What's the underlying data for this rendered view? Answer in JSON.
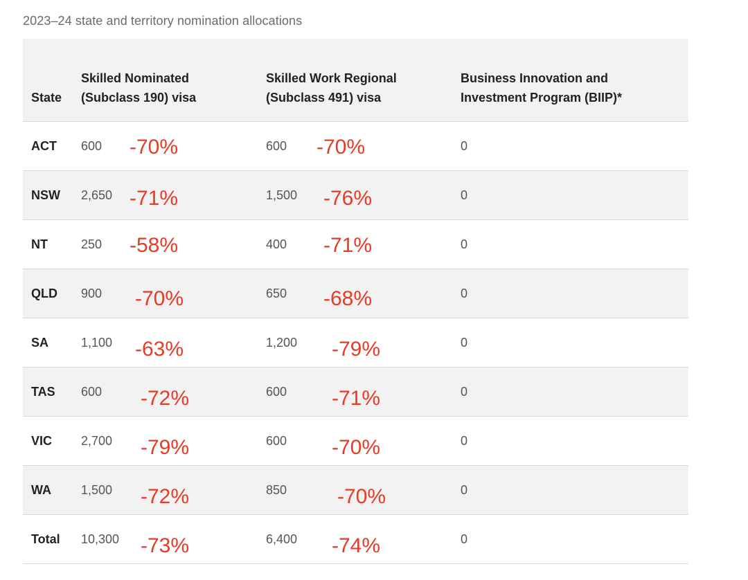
{
  "caption": "2023–24 state and territory nomination allocations",
  "headers": {
    "state": "State",
    "subclass190_line1": "Skilled Nominated",
    "subclass190_line2": "(Subclass 190) visa",
    "subclass491_line1": "Skilled Work Regional",
    "subclass491_line2": "(Subclass 491) visa",
    "biip_line1": "Business Innovation and",
    "biip_line2": "Investment Program (BIIP)*"
  },
  "rows": [
    {
      "state": "ACT",
      "s190": "600",
      "s190_change": "-70%",
      "s491": "600",
      "s491_change": "-70%",
      "biip": "0"
    },
    {
      "state": "NSW",
      "s190": "2,650",
      "s190_change": "-71%",
      "s491": "1,500",
      "s491_change": "-76%",
      "biip": "0"
    },
    {
      "state": "NT",
      "s190": "250",
      "s190_change": "-58%",
      "s491": "400",
      "s491_change": "-71%",
      "biip": "0"
    },
    {
      "state": "QLD",
      "s190": "900",
      "s190_change": "-70%",
      "s491": "650",
      "s491_change": "-68%",
      "biip": "0"
    },
    {
      "state": "SA",
      "s190": "1,100",
      "s190_change": "-63%",
      "s491": "1,200",
      "s491_change": "-79%",
      "biip": "0"
    },
    {
      "state": "TAS",
      "s190": "600",
      "s190_change": "-72%",
      "s491": "600",
      "s491_change": "-71%",
      "biip": "0"
    },
    {
      "state": "VIC",
      "s190": "2,700",
      "s190_change": "-79%",
      "s491": "600",
      "s491_change": "-70%",
      "biip": "0"
    },
    {
      "state": "WA",
      "s190": "1,500",
      "s190_change": "-72%",
      "s491": "850",
      "s491_change": "-70%",
      "biip": "0"
    },
    {
      "state": "Total",
      "s190": "10,300",
      "s190_change": "-73%",
      "s491": "6,400",
      "s491_change": "-74%",
      "biip": "0"
    }
  ],
  "colors": {
    "change_annotation": "#e83a24",
    "header_bg": "#f2f2f2",
    "alt_row_bg": "#f2f2f2"
  }
}
